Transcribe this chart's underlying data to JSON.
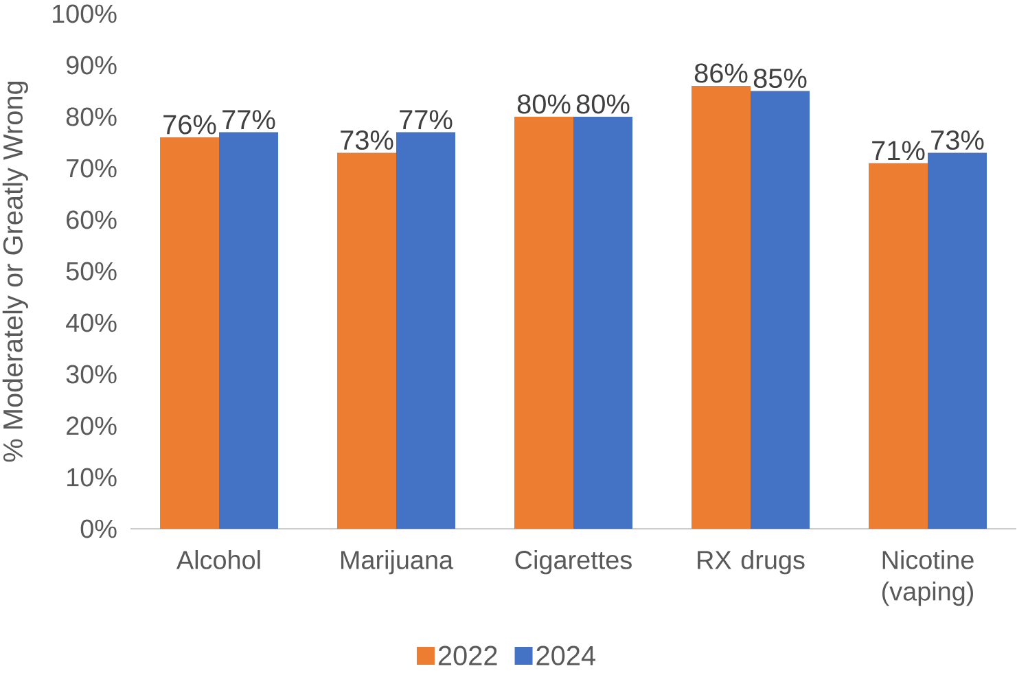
{
  "chart_data": {
    "type": "bar",
    "ylabel": "% Moderately or Greatly Wrong",
    "categories": [
      "Alcohol",
      "Marijuana",
      "Cigarettes",
      "RX drugs",
      "Nicotine (vaping)"
    ],
    "series": [
      {
        "name": "2022",
        "color": "#ed7d31",
        "values": [
          76,
          73,
          80,
          86,
          71
        ],
        "value_labels": [
          "76%",
          "73%",
          "80%",
          "86%",
          "71%"
        ]
      },
      {
        "name": "2024",
        "color": "#4472c4",
        "values": [
          77,
          77,
          80,
          85,
          73
        ],
        "value_labels": [
          "77%",
          "77%",
          "80%",
          "85%",
          "73%"
        ]
      }
    ],
    "ylim": [
      0,
      100
    ],
    "yticks": [
      {
        "value": 0,
        "label": "0%"
      },
      {
        "value": 10,
        "label": "10%"
      },
      {
        "value": 20,
        "label": "20%"
      },
      {
        "value": 30,
        "label": "30%"
      },
      {
        "value": 40,
        "label": "40%"
      },
      {
        "value": 50,
        "label": "50%"
      },
      {
        "value": 60,
        "label": "60%"
      },
      {
        "value": 70,
        "label": "70%"
      },
      {
        "value": 80,
        "label": "80%"
      },
      {
        "value": 90,
        "label": "90%"
      },
      {
        "value": 100,
        "label": "100%"
      }
    ],
    "legend": "bottom"
  }
}
